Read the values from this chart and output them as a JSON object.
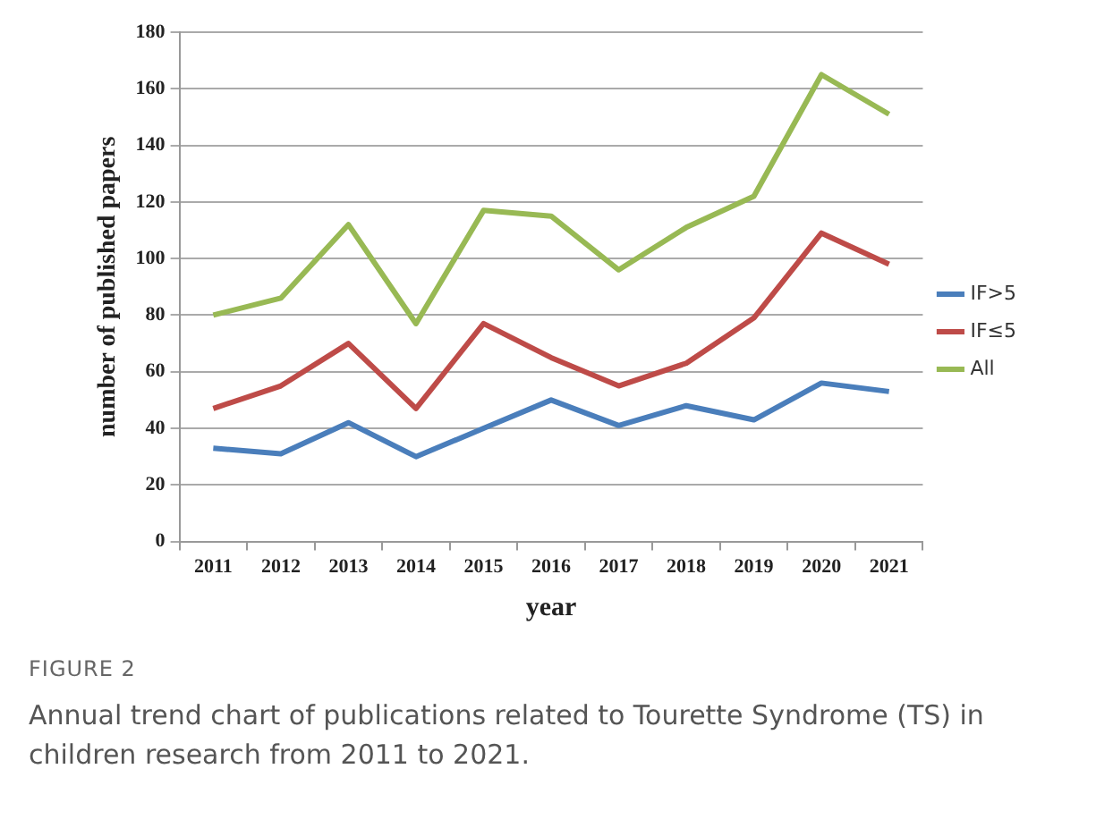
{
  "chart_data": {
    "type": "line",
    "xlabel": "year",
    "ylabel": "number of published papers",
    "categories": [
      "2011",
      "2012",
      "2013",
      "2014",
      "2015",
      "2016",
      "2017",
      "2018",
      "2019",
      "2020",
      "2021"
    ],
    "series": [
      {
        "name": "IF>5",
        "color": "#4a7ebb",
        "values": [
          33,
          31,
          42,
          30,
          40,
          50,
          41,
          48,
          43,
          56,
          53
        ]
      },
      {
        "name": "IF≤5",
        "color": "#be4b48",
        "values": [
          47,
          55,
          70,
          47,
          77,
          65,
          55,
          63,
          79,
          109,
          98
        ]
      },
      {
        "name": "All",
        "color": "#98b954",
        "values": [
          80,
          86,
          112,
          77,
          117,
          115,
          96,
          111,
          122,
          165,
          151
        ]
      }
    ],
    "ylim": [
      0,
      180
    ],
    "yticks": [
      0,
      20,
      40,
      60,
      80,
      100,
      120,
      140,
      160,
      180
    ],
    "grid": "y",
    "legend": "right",
    "marker": "none",
    "line_style": "solid",
    "annotations": [
      "FIGURE 2",
      "Annual trend chart of publications related to Tourette Syndrome (TS) in children research from 2011 to 2021."
    ]
  }
}
